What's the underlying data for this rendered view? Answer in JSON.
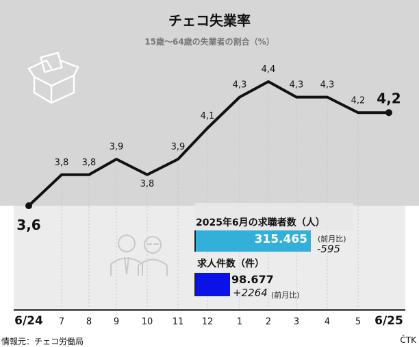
{
  "title": "チェコ失業率",
  "subtitle": "15歳〜64歳の失業者の割合（%）",
  "chart_data": {
    "type": "line",
    "title": "チェコ失業率",
    "subtitle": "15歳〜64歳の失業者の割合（%）",
    "categories": [
      "6/24",
      "7",
      "8",
      "9",
      "10",
      "11",
      "12",
      "1",
      "2",
      "3",
      "4",
      "5",
      "6/25"
    ],
    "values": [
      3.6,
      3.8,
      3.8,
      3.9,
      3.8,
      3.9,
      4.1,
      4.3,
      4.4,
      4.3,
      4.3,
      4.2,
      4.2
    ],
    "labels": [
      "3,6",
      "3,8",
      "3,8",
      "3,9",
      "3,8",
      "3,9",
      "4,1",
      "4,3",
      "4,4",
      "4,3",
      "4,3",
      "4,2",
      "4,2"
    ],
    "ylim": [
      3.6,
      4.4
    ],
    "grid": "vertical dotted"
  },
  "jobs_box": {
    "seekers_title": "2025年6月の求職者数（人）",
    "seekers_value": "315.465",
    "seekers_cmp_label": "(前月比)",
    "seekers_change": "-595",
    "vacancies_title": "求人件数（件）",
    "vacancies_value": "98.677",
    "vacancies_change": "+2264",
    "vacancies_cmp_label": "(前月比)",
    "colors": {
      "seekers": "#33b0da",
      "vacancies": "#0a12e8"
    }
  },
  "footer": {
    "source": "情報元：チェコ労働局",
    "credit": "ČTK"
  }
}
